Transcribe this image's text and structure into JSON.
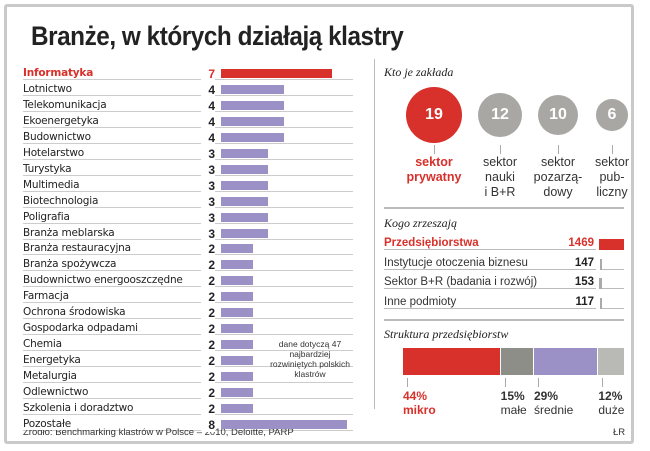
{
  "title": "Branże, w których działają klastry",
  "chart_data": [
    {
      "type": "bar",
      "orientation": "horizontal",
      "categories": [
        "Informatyka",
        "Lotnictwo",
        "Telekomunikacja",
        "Ekoenergetyka",
        "Budownictwo",
        "Hotelarstwo",
        "Turystyka",
        "Multimedia",
        "Biotechnologia",
        "Poligrafia",
        "Branża meblarska",
        "Branża restauracyjna",
        "Branża spożywcza",
        "Budownictwo energooszczędne",
        "Farmacja",
        "Ochrona środowiska",
        "Gospodarka odpadami",
        "Chemia",
        "Energetyka",
        "Metalurgia",
        "Odlewnictwo",
        "Szkolenia i doradztwo",
        "Pozostałe"
      ],
      "values": [
        7,
        4,
        4,
        4,
        4,
        3,
        3,
        3,
        3,
        3,
        3,
        2,
        2,
        2,
        2,
        2,
        2,
        2,
        2,
        2,
        2,
        2,
        8
      ],
      "highlight": "Informatyka"
    },
    {
      "type": "bubble",
      "title": "Kto je zakłada",
      "categories": [
        "sektor prywatny",
        "sektor nauki i B+R",
        "sektor pozarządowy",
        "sektor publiczny"
      ],
      "labels": [
        "sektor\nprywatny",
        "sektor\nnauki\ni B+R",
        "sektor\npozarzą-\ndowy",
        "sektor\npub-\nliczny"
      ],
      "values": [
        19,
        12,
        10,
        6
      ]
    },
    {
      "type": "bar",
      "title": "Kogo zrzeszają",
      "categories": [
        "Przedsiębiorstwa",
        "Instytucje otoczenia biznesu",
        "Sektor B+R (badania i rozwój)",
        "Inne podmioty"
      ],
      "values": [
        1469,
        147,
        153,
        117
      ]
    },
    {
      "type": "stacked-bar",
      "title": "Struktura przedsiębiorstw",
      "categories": [
        "mikro",
        "małe",
        "średnie",
        "duże"
      ],
      "values": [
        44,
        15,
        29,
        12
      ],
      "value_labels": [
        "44%",
        "15%",
        "29%",
        "12%"
      ]
    }
  ],
  "colors": {
    "highlight": "#d8302a",
    "bar": "#9b91c6",
    "gray": "#a8a7a3",
    "dark_gray": "#8e8e88",
    "light_gray": "#b9b9b5"
  },
  "note": "dane dotyczą 47 najbardziej rozwiniętych polskich klastrów",
  "source": "Źródło: Benchmarking klastrów w Polsce – 2010, Deloitte, PARP",
  "author": "ŁR"
}
